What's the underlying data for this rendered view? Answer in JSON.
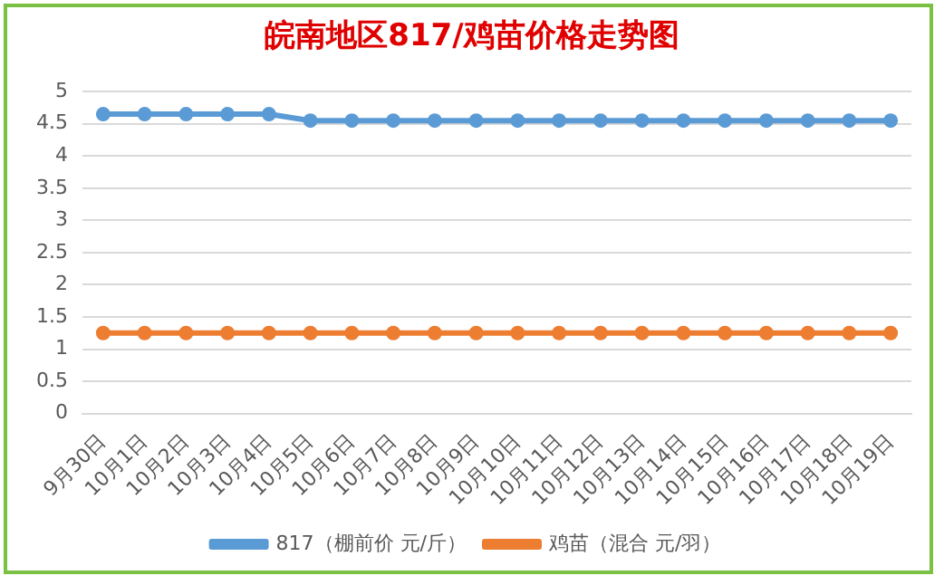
{
  "chart_data": {
    "type": "line",
    "title": "皖南地区817/鸡苗价格走势图",
    "categories": [
      "9月30日",
      "10月1日",
      "10月2日",
      "10月3日",
      "10月4日",
      "10月5日",
      "10月6日",
      "10月7日",
      "10月8日",
      "10月9日",
      "10月10日",
      "10月11日",
      "10月12日",
      "10月13日",
      "10月14日",
      "10月15日",
      "10月16日",
      "10月17日",
      "10月18日",
      "10月19日"
    ],
    "series": [
      {
        "name": "817（棚前价 元/斤）",
        "color": "#5b9bd5",
        "values": [
          4.65,
          4.65,
          4.65,
          4.65,
          4.65,
          4.55,
          4.55,
          4.55,
          4.55,
          4.55,
          4.55,
          4.55,
          4.55,
          4.55,
          4.55,
          4.55,
          4.55,
          4.55,
          4.55,
          4.55
        ]
      },
      {
        "name": "鸡苗（混合 元/羽）",
        "color": "#ed7d31",
        "values": [
          1.25,
          1.25,
          1.25,
          1.25,
          1.25,
          1.25,
          1.25,
          1.25,
          1.25,
          1.25,
          1.25,
          1.25,
          1.25,
          1.25,
          1.25,
          1.25,
          1.25,
          1.25,
          1.25,
          1.25
        ]
      }
    ],
    "ylim": [
      0,
      5
    ],
    "yticks": [
      0,
      0.5,
      1,
      1.5,
      2,
      2.5,
      3,
      3.5,
      4,
      4.5,
      5
    ],
    "grid": "y",
    "legend": "bottom",
    "marker": "circle",
    "line_style": "solid"
  }
}
